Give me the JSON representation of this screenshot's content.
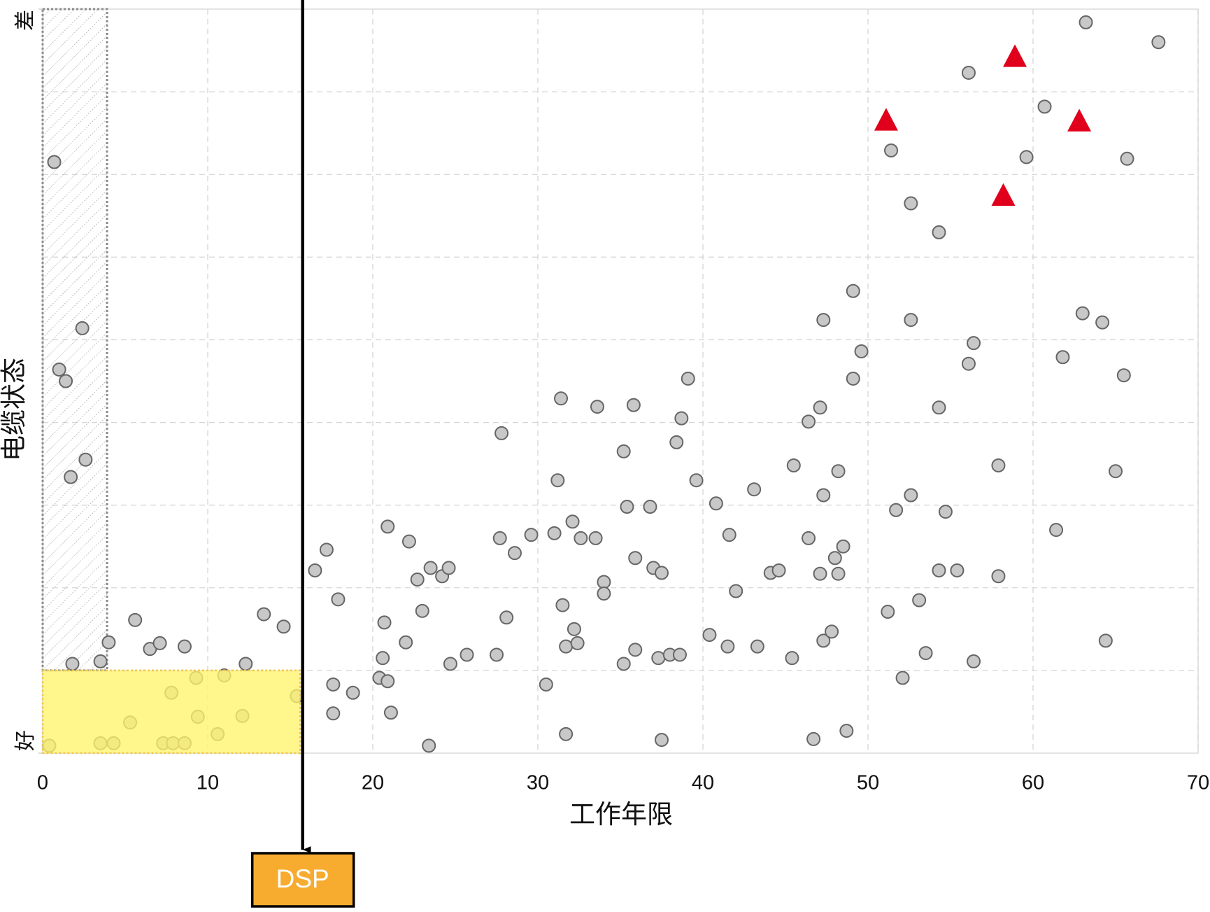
{
  "chart_data": {
    "type": "scatter",
    "xlabel": "工作年限",
    "ylabel": "电缆状态",
    "xlim": [
      0,
      70
    ],
    "xticks": [
      0,
      10,
      20,
      30,
      40,
      50,
      60,
      70
    ],
    "ylim": [
      0,
      9
    ],
    "yticks": [
      {
        "value": 0,
        "label": "好"
      },
      {
        "value": 9,
        "label": "差"
      }
    ],
    "y_gridlines": [
      1,
      2,
      3,
      4,
      5,
      6,
      7,
      8
    ],
    "grid": true,
    "regions": [
      {
        "x": [
          0,
          3.9
        ],
        "y": [
          1,
          9
        ],
        "style": "hatch",
        "color": "#8c8c8c"
      },
      {
        "x": [
          0,
          15.6
        ],
        "y": [
          0,
          1
        ],
        "style": "fill",
        "color": "#fff36b"
      }
    ],
    "threshold": {
      "x": 15.75,
      "label": "DSP",
      "color": "#f7ac2f"
    },
    "series": [
      {
        "marker": "circle",
        "color": "#c8c8c8",
        "x": [
          0.4,
          0.7,
          1.0,
          1.4,
          2.4,
          2.6,
          1.7,
          1.8,
          3.5,
          4.0,
          3.5,
          4.3,
          5.6,
          5.3,
          6.5,
          7.1,
          7.8,
          7.3,
          7.9,
          8.6,
          8.6,
          9.3,
          9.4,
          10.6,
          11.0,
          12.1,
          12.3,
          13.4,
          14.6,
          15.4,
          16.5,
          17.2,
          17.9,
          17.6,
          17.6,
          18.8,
          20.4,
          20.6,
          20.9,
          20.7,
          20.9,
          21.1,
          22.0,
          22.2,
          22.7,
          23.0,
          23.5,
          24.2,
          24.6,
          23.4,
          24.7,
          25.7,
          27.5,
          27.7,
          27.8,
          28.1,
          28.6,
          29.6,
          30.5,
          31.0,
          31.2,
          31.4,
          31.5,
          31.7,
          31.7,
          32.1,
          32.2,
          32.4,
          32.6,
          33.5,
          33.6,
          34.0,
          34.0,
          35.2,
          35.2,
          35.4,
          35.8,
          35.9,
          35.9,
          36.8,
          37.0,
          37.3,
          37.5,
          37.5,
          38.0,
          38.4,
          38.6,
          38.7,
          39.1,
          39.6,
          40.4,
          40.8,
          41.5,
          41.6,
          42.0,
          43.1,
          43.3,
          44.1,
          44.6,
          45.4,
          45.5,
          46.4,
          46.4,
          46.7,
          47.1,
          47.1,
          47.3,
          47.3,
          47.3,
          47.8,
          48.0,
          48.2,
          48.2,
          48.5,
          48.7,
          49.1,
          49.1,
          49.6,
          51.2,
          51.4,
          51.7,
          52.1,
          52.6,
          52.6,
          52.6,
          53.1,
          53.5,
          54.3,
          54.3,
          54.3,
          54.7,
          55.4,
          56.1,
          56.1,
          56.4,
          56.4,
          57.9,
          57.9,
          59.6,
          60.7,
          61.4,
          61.8,
          63.0,
          63.2,
          64.2,
          64.4,
          65.0,
          65.5,
          65.7,
          67.6
        ],
        "values": [
          0.09,
          7.15,
          4.64,
          4.5,
          5.14,
          3.55,
          3.34,
          1.08,
          1.11,
          1.34,
          0.12,
          0.12,
          1.61,
          0.37,
          1.26,
          1.33,
          0.73,
          0.12,
          0.12,
          0.12,
          1.29,
          0.91,
          0.44,
          0.23,
          0.94,
          0.45,
          1.08,
          1.68,
          1.53,
          0.69,
          2.21,
          2.46,
          1.86,
          0.83,
          0.48,
          0.73,
          0.91,
          1.15,
          2.74,
          1.58,
          0.87,
          0.49,
          1.34,
          2.56,
          2.1,
          1.72,
          2.24,
          2.14,
          2.24,
          0.09,
          1.08,
          1.19,
          1.19,
          2.6,
          3.87,
          1.64,
          2.42,
          2.64,
          0.83,
          2.66,
          3.3,
          4.29,
          1.79,
          1.29,
          0.23,
          2.8,
          1.5,
          1.33,
          2.6,
          2.6,
          4.19,
          2.07,
          1.93,
          1.08,
          3.65,
          2.98,
          4.21,
          2.36,
          1.25,
          2.98,
          2.24,
          1.15,
          2.18,
          0.16,
          1.19,
          3.76,
          1.19,
          4.05,
          4.53,
          3.3,
          1.43,
          3.02,
          1.29,
          2.64,
          1.96,
          3.19,
          1.29,
          2.18,
          2.21,
          1.15,
          3.48,
          2.6,
          4.01,
          0.17,
          2.17,
          4.18,
          5.24,
          3.12,
          1.36,
          1.47,
          2.36,
          3.41,
          2.17,
          2.5,
          0.27,
          5.59,
          4.53,
          4.86,
          1.71,
          7.29,
          2.94,
          0.91,
          6.65,
          5.24,
          3.12,
          1.85,
          1.21,
          6.3,
          4.18,
          2.21,
          2.92,
          2.21,
          8.23,
          4.71,
          4.96,
          1.11,
          3.48,
          2.14,
          7.21,
          7.82,
          2.7,
          4.79,
          5.32,
          8.84,
          5.21,
          1.36,
          3.41,
          4.57,
          7.19,
          8.6
        ]
      },
      {
        "marker": "triangle",
        "color": "#e0001b",
        "x": [
          51.1,
          58.9,
          62.8,
          58.2
        ],
        "values": [
          7.66,
          8.43,
          7.65,
          6.75
        ]
      }
    ]
  }
}
